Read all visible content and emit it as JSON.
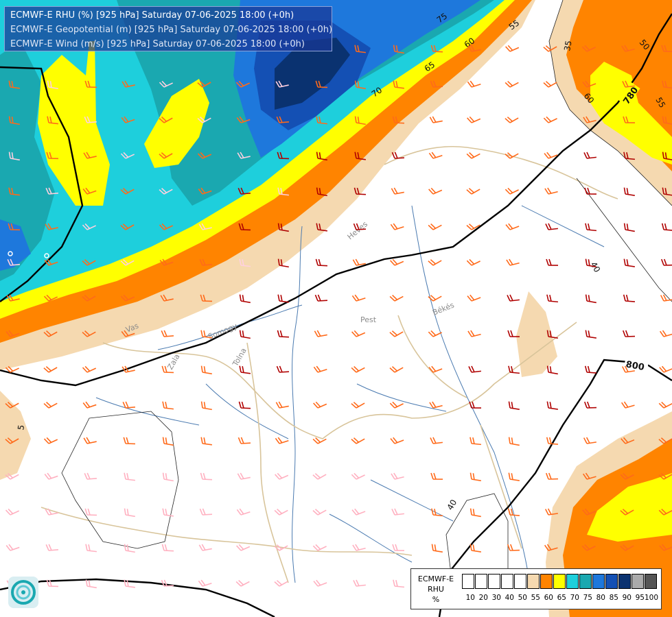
{
  "title": {
    "line1": "ECMWF-E RHU (%) [925 hPa] Saturday 07-06-2025 18:00 (+0h)",
    "line2": "ECMWF-E Geopotential (m) [925 hPa] Saturday 07-06-2025 18:00 (+0h)",
    "line3": "ECMWF-E Wind (m/s) [925 hPa] Saturday 07-06-2025 18:00 (+0h)"
  },
  "legend": {
    "model": "ECMWF-E",
    "variable": "RHU",
    "unit": "%",
    "ticks": [
      "10",
      "20",
      "30",
      "40",
      "50",
      "55",
      "60",
      "65",
      "70",
      "75",
      "80",
      "85",
      "90",
      "95",
      "100"
    ],
    "colors": [
      "#ffffff",
      "#ffffff",
      "#ffffff",
      "#ffffff",
      "#ffffff",
      "#f5d9b0",
      "#ff8400",
      "#ffff00",
      "#1ecfdc",
      "#1aa8b0",
      "#1e78dc",
      "#1450b4",
      "#0a3270",
      "#aaaaaa",
      "#555555"
    ]
  },
  "map": {
    "geopotential_contours": [
      "780",
      "800"
    ],
    "rhu_contour_labels": [
      "75",
      "70",
      "65",
      "60",
      "55",
      "50",
      "40",
      "35",
      "60",
      "50",
      "55",
      "40",
      "5"
    ],
    "place_labels": [
      "Pest",
      "Békés",
      "Heves",
      "Tolna",
      "Zala",
      "Somogy",
      "Vas"
    ]
  },
  "colors": {
    "rhu_55": "#f5d9b0",
    "rhu_60": "#ff8400",
    "rhu_65": "#ffff00",
    "rhu_70": "#1ecfdc",
    "rhu_75": "#1aa8b0",
    "rhu_80": "#1e78dc",
    "rhu_85": "#1450b4",
    "rhu_90": "#0a3270",
    "wind_calm": "#ffb0c0",
    "wind_low": "#ff6a1a",
    "wind_high": "#b00000",
    "border": "#d8c49a",
    "river": "#4a7ab0"
  },
  "logo": {
    "icon": "ecmwf-swirl-icon"
  }
}
